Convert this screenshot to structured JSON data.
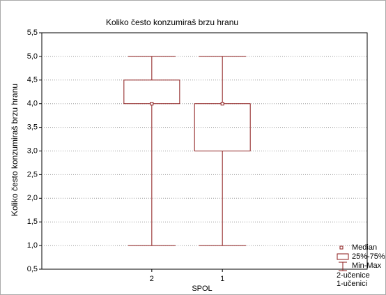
{
  "chart_data": {
    "type": "box",
    "title": "Koliko često konzumiraš brzu hranu",
    "ylabel": "Koliko često konzumiraš brzu hranu",
    "xlabel": "SPOL",
    "categories": [
      "2",
      "1"
    ],
    "min": [
      1.0,
      1.0
    ],
    "q1": [
      4.0,
      3.0
    ],
    "median": [
      4.0,
      4.0
    ],
    "q3": [
      4.5,
      4.0
    ],
    "max": [
      5.0,
      5.0
    ],
    "color": "#8b1a1a",
    "ylim": [
      0.5,
      5.5
    ],
    "yticks": [
      {
        "value": 0.5,
        "label": "0,5"
      },
      {
        "value": 1.0,
        "label": "1,0"
      },
      {
        "value": 1.5,
        "label": "1,5"
      },
      {
        "value": 2.0,
        "label": "2,0"
      },
      {
        "value": 2.5,
        "label": "2,5"
      },
      {
        "value": 3.0,
        "label": "3,0"
      },
      {
        "value": 3.5,
        "label": "3,5"
      },
      {
        "value": 4.0,
        "label": "4,0"
      },
      {
        "value": 4.5,
        "label": "4,5"
      },
      {
        "value": 5.0,
        "label": "5,0"
      },
      {
        "value": 5.5,
        "label": "5,5"
      }
    ],
    "grid": true,
    "legend": [
      "Median",
      "25%-75%",
      "Min-Max"
    ],
    "notes": [
      "2-učenice",
      "1-učenici"
    ]
  }
}
